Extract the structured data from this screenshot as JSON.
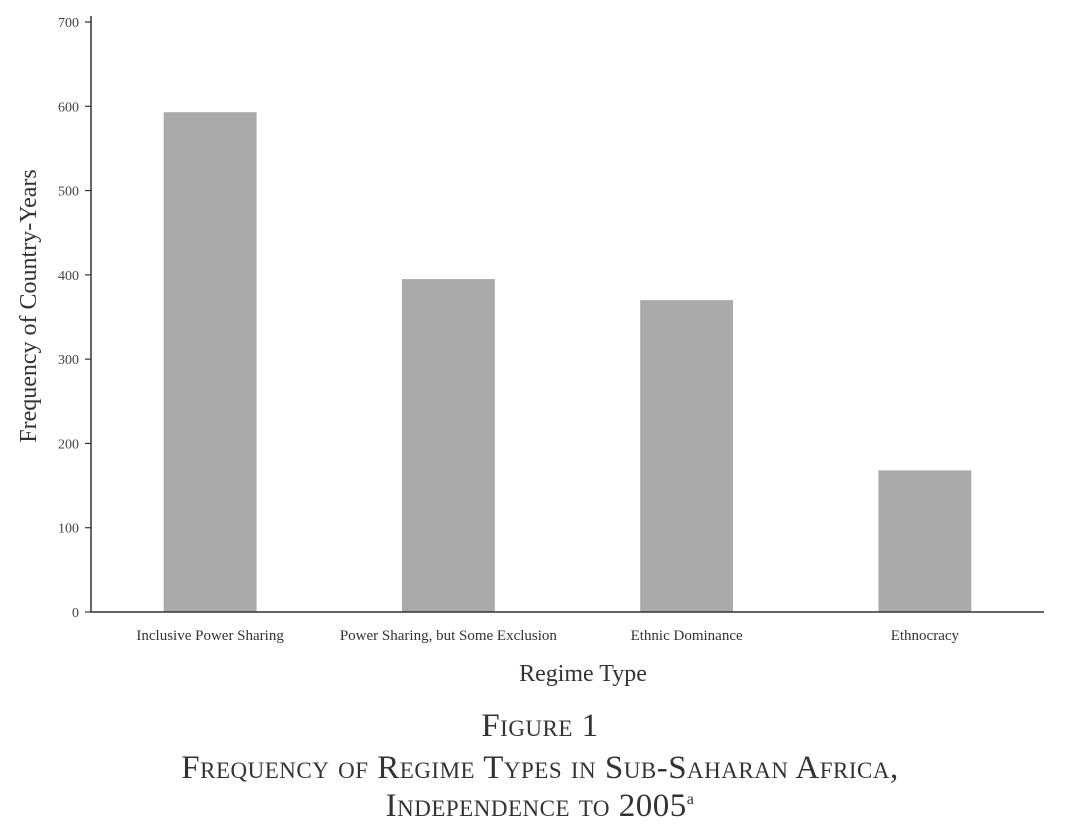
{
  "chart_data": {
    "type": "bar",
    "categories": [
      "Inclusive Power Sharing",
      "Power Sharing, but Some Exclusion",
      "Ethnic Dominance",
      "Ethnocracy"
    ],
    "values": [
      593,
      395,
      370,
      168
    ],
    "xlabel": "Regime Type",
    "ylabel": "Frequency of Country-Years",
    "ylim": [
      0,
      700
    ],
    "yticks": [
      0,
      100,
      200,
      300,
      400,
      500,
      600,
      700
    ],
    "grid": false,
    "bar_color": "#a9aaab"
  },
  "caption": {
    "figure_label": "Figure 1",
    "title_line1": "Frequency of Regime Types in Sub-Saharan Africa,",
    "title_line2": "Independence to 2005",
    "footnote_marker": "a"
  }
}
